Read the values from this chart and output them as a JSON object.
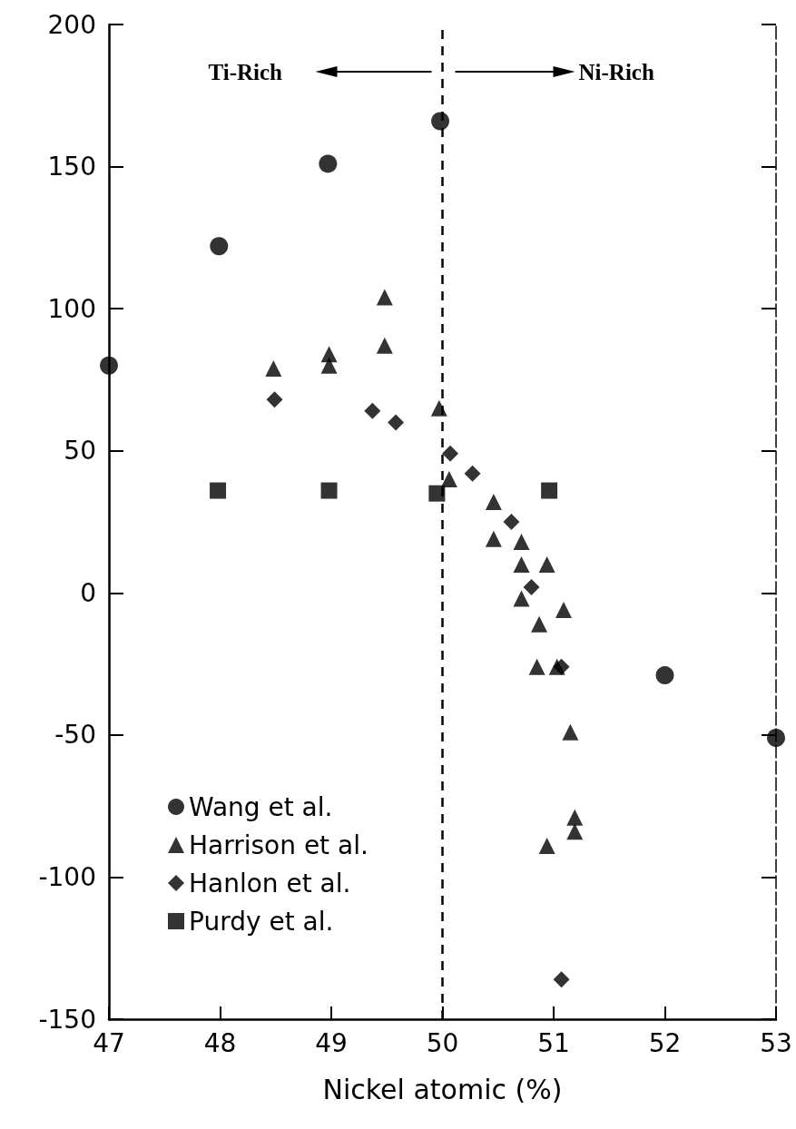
{
  "chart_data": {
    "type": "scatter",
    "xlabel": "Nickel atomic (%)",
    "xlim": [
      47,
      53
    ],
    "xticks": [
      47,
      48,
      49,
      50,
      51,
      52,
      53
    ],
    "ylim": [
      -150,
      200
    ],
    "yticks": [
      -150,
      -100,
      -50,
      0,
      50,
      100,
      150,
      200
    ],
    "grid": false,
    "legend": "bottom left",
    "annotations": [
      "Ti-Rich",
      "Ni-Rich"
    ],
    "ref_lines": [
      {
        "axis": "x",
        "value": 50,
        "line_style": "dashed",
        "color": "#000000"
      }
    ],
    "series": [
      {
        "name": "Wang et al.",
        "color": "#000000",
        "marker": "circle",
        "x": [
          47,
          47.99,
          48.97,
          49.98,
          52,
          53
        ],
        "values": [
          80,
          122,
          151,
          166,
          -29,
          -51
        ]
      },
      {
        "name": "Harrison et al.",
        "color": "#000000",
        "marker": "triangle",
        "x": [
          48.48,
          48.98,
          48.98,
          49.48,
          49.48,
          49.97,
          50.06,
          50.46,
          50.46,
          50.71,
          50.71,
          50.94,
          50.71,
          51.09,
          50.87,
          50.85,
          51.03,
          51.15,
          51.19,
          51.19,
          50.94
        ],
        "values": [
          79,
          84,
          80,
          104,
          87,
          65,
          40,
          32,
          19,
          18,
          10,
          10,
          -2,
          -6,
          -11,
          -26,
          -26,
          -49,
          -79,
          -84,
          -89
        ]
      },
      {
        "name": "Hanlon et al.",
        "color": "#000000",
        "marker": "diamond",
        "x": [
          48.49,
          49.37,
          49.58,
          50.07,
          50.27,
          50.62,
          50.8,
          51.07,
          51.07
        ],
        "values": [
          68,
          64,
          60,
          49,
          42,
          25,
          2,
          -26,
          -136
        ]
      },
      {
        "name": "Purdy et al.",
        "color": "#000000",
        "marker": "square",
        "x": [
          47.98,
          48.98,
          49.95,
          50.96
        ],
        "values": [
          36,
          36,
          35,
          36
        ]
      }
    ]
  }
}
